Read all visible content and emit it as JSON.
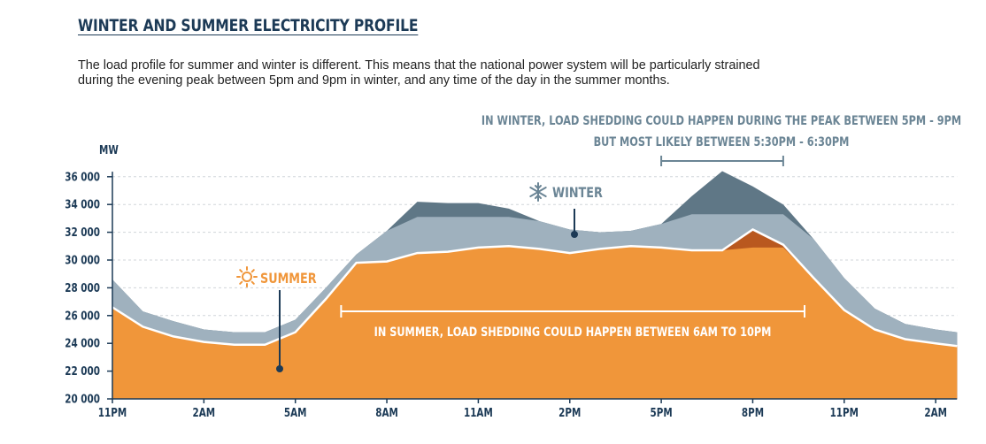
{
  "title": "WINTER AND SUMMER ELECTRICITY PROFILE",
  "description": [
    "The load profile for summer and winter is different. This means that the national power system will be particularly strained",
    "during the evening peak between 5pm and 9pm in winter, and any time of the day in the summer months."
  ],
  "colors": {
    "summer": "#f0963a",
    "summer_peak": "#b9581f",
    "winter": "#9fb1be",
    "winter_peak": "#5f7786",
    "text_dark": "#1c3a56",
    "annotation": "#6b8595",
    "grid": "#d0d5da"
  },
  "winter_annotation": [
    "IN WINTER, LOAD SHEDDING COULD HAPPEN DURING THE PEAK BETWEEN 5PM - 9PM",
    "BUT MOST LIKELY BETWEEN 5:30PM - 6:30PM"
  ],
  "summer_annotation": "IN SUMMER, LOAD SHEDDING COULD HAPPEN BETWEEN 6AM TO 10PM",
  "icons": {
    "summer": "sun-icon",
    "winter": "snowflake-icon"
  },
  "chart_data": {
    "type": "area",
    "ylabel": "MW",
    "xlabel": "",
    "ylim": [
      20000,
      37000
    ],
    "yticks": [
      20000,
      22000,
      24000,
      26000,
      28000,
      30000,
      32000,
      34000,
      36000
    ],
    "ytick_labels": [
      "20 000",
      "22 000",
      "24 000",
      "26 000",
      "28 000",
      "30 000",
      "32 000",
      "34 000",
      "36 000"
    ],
    "xticks": [
      {
        "label": "11PM",
        "x": 0
      },
      {
        "label": "2AM",
        "x": 3
      },
      {
        "label": "5AM",
        "x": 6
      },
      {
        "label": "8AM",
        "x": 9
      },
      {
        "label": "11AM",
        "x": 12
      },
      {
        "label": "2PM",
        "x": 15
      },
      {
        "label": "5PM",
        "x": 18
      },
      {
        "label": "8PM",
        "x": 21
      },
      {
        "label": "11PM",
        "x": 24
      },
      {
        "label": "2AM",
        "x": 27
      }
    ],
    "grid": true,
    "series": [
      {
        "name": "WINTER",
        "x": [
          0,
          1,
          2,
          3,
          4,
          5,
          6,
          7,
          8,
          9,
          10,
          11,
          12,
          13,
          14,
          15,
          16,
          17,
          18,
          19,
          20,
          21,
          22,
          23,
          24,
          25,
          26,
          27,
          27.7
        ],
        "values": [
          28600,
          26300,
          25600,
          25000,
          24800,
          24800,
          25700,
          28000,
          30400,
          32100,
          34200,
          34100,
          34100,
          33700,
          32800,
          32200,
          32000,
          32100,
          32600,
          34600,
          36400,
          35300,
          34000,
          31500,
          28700,
          26500,
          25400,
          25000,
          24800
        ]
      },
      {
        "name": "SUMMER",
        "x": [
          0,
          1,
          2,
          3,
          4,
          5,
          6,
          7,
          8,
          9,
          10,
          11,
          12,
          13,
          14,
          15,
          16,
          17,
          18,
          19,
          20,
          21,
          22,
          23,
          24,
          25,
          26,
          27,
          27.7
        ],
        "values": [
          26600,
          25200,
          24500,
          24100,
          23900,
          23900,
          24800,
          27200,
          29800,
          29900,
          30500,
          30600,
          30900,
          31000,
          30800,
          30500,
          30800,
          31000,
          30900,
          30700,
          30700,
          32200,
          31100,
          28700,
          26400,
          25000,
          24300,
          24000,
          23800
        ]
      }
    ],
    "labels": {
      "summer": "SUMMER",
      "winter": "WINTER"
    },
    "summer_window": {
      "from": 7.5,
      "to": 22.7
    },
    "winter_window": {
      "from": 18.0,
      "to": 22.0
    }
  }
}
